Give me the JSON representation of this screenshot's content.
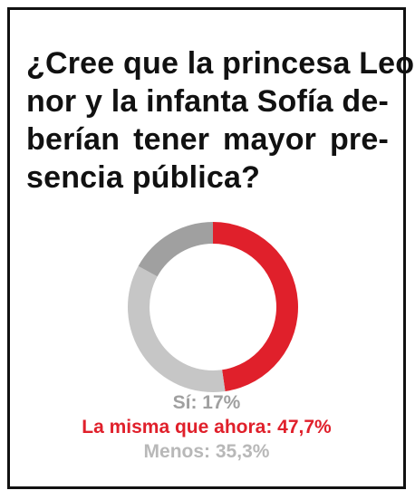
{
  "question": {
    "lines": [
      "¿Cree que la princesa Leo-",
      "nor y la infanta Sofía de-",
      "berían tener mayor pre-",
      "sencia pública?"
    ]
  },
  "legend": {
    "items": [
      {
        "label": "Sí: 17%",
        "color": "#a0a0a0"
      },
      {
        "label": "La misma que ahora: 47,7%",
        "color": "#e0202b"
      },
      {
        "label": "Menos: 35,3%",
        "color": "#b8b8b8"
      }
    ]
  },
  "chart_data": {
    "type": "pie",
    "style": "donut",
    "categories": [
      "Sí",
      "La misma que ahora",
      "Menos"
    ],
    "values": [
      17,
      47.7,
      35.3
    ],
    "unit": "%",
    "colors": [
      "#a0a0a0",
      "#e0202b",
      "#c6c6c6"
    ],
    "title": "¿Cree que la princesa Leonor y la infanta Sofía deberían tener mayor presencia pública?"
  }
}
